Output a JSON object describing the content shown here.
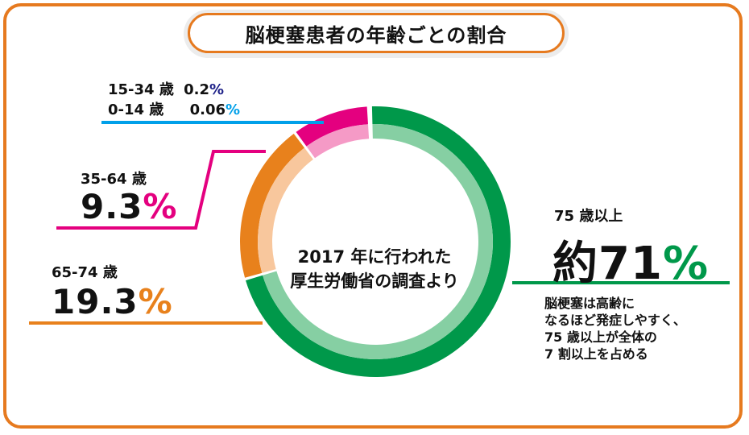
{
  "title": "脳梗塞患者の年齢ごとの割合",
  "center": {
    "line1": "2017 年に行われた",
    "line2": "厚生労働省の調査より"
  },
  "labels": {
    "age75": {
      "category": "75 歳以上",
      "value": "約71",
      "symbol": "%"
    },
    "age65": {
      "category": "65-74 歳",
      "value": "19.3",
      "symbol": "%"
    },
    "age35": {
      "category": "35-64 歳",
      "value": "9.3",
      "symbol": "%"
    },
    "age15": {
      "category": "15-34 歳",
      "value": "0.2",
      "symbol": "%"
    },
    "age0": {
      "category": "0-14 歳",
      "value": "0.06",
      "symbol": "%"
    }
  },
  "note": {
    "line1": "脳梗塞は高齢に",
    "line2": "なるほど発症しやすく、",
    "line3": "75 歳以上が全体の",
    "line4": "7 割以上を占める"
  },
  "colors": {
    "accent": "#e67a1f",
    "green": "#00984a",
    "green_light": "#86cfa3",
    "orange": "#e8811c",
    "orange_light": "#f8c79d",
    "magenta": "#e4007f",
    "magenta_light": "#f59ac6",
    "navy": "#1d2088",
    "cyan": "#00a0e9"
  },
  "chart_data": {
    "type": "pie",
    "categories": [
      "75 歳以上",
      "65-74 歳",
      "35-64 歳",
      "15-34 歳",
      "0-14 歳"
    ],
    "values": [
      71,
      19.3,
      9.3,
      0.2,
      0.06
    ],
    "title": "脳梗塞患者の年齢ごとの割合",
    "legend": "none"
  }
}
